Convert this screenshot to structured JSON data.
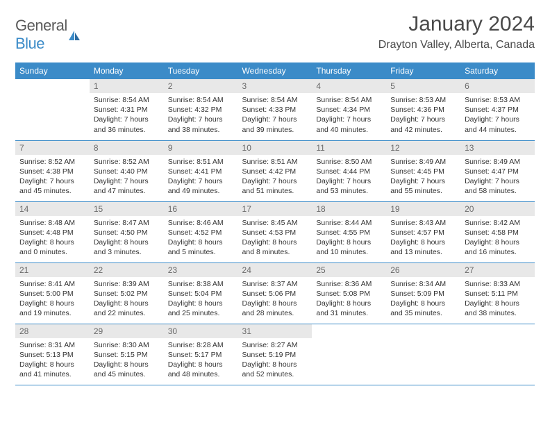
{
  "brand": {
    "name_gray": "General",
    "name_blue": "Blue"
  },
  "title": "January 2024",
  "location": "Drayton Valley, Alberta, Canada",
  "colors": {
    "header_bg": "#3b8bc8",
    "header_text": "#ffffff",
    "daynum_bg": "#e8e8e8",
    "daynum_text": "#6a6a6a",
    "body_text": "#333333",
    "row_border": "#3b8bc8",
    "background": "#ffffff"
  },
  "days_of_week": [
    "Sunday",
    "Monday",
    "Tuesday",
    "Wednesday",
    "Thursday",
    "Friday",
    "Saturday"
  ],
  "weeks": [
    [
      {
        "n": "",
        "sunrise": "",
        "sunset": "",
        "daylight": ""
      },
      {
        "n": "1",
        "sunrise": "8:54 AM",
        "sunset": "4:31 PM",
        "daylight": "7 hours and 36 minutes."
      },
      {
        "n": "2",
        "sunrise": "8:54 AM",
        "sunset": "4:32 PM",
        "daylight": "7 hours and 38 minutes."
      },
      {
        "n": "3",
        "sunrise": "8:54 AM",
        "sunset": "4:33 PM",
        "daylight": "7 hours and 39 minutes."
      },
      {
        "n": "4",
        "sunrise": "8:54 AM",
        "sunset": "4:34 PM",
        "daylight": "7 hours and 40 minutes."
      },
      {
        "n": "5",
        "sunrise": "8:53 AM",
        "sunset": "4:36 PM",
        "daylight": "7 hours and 42 minutes."
      },
      {
        "n": "6",
        "sunrise": "8:53 AM",
        "sunset": "4:37 PM",
        "daylight": "7 hours and 44 minutes."
      }
    ],
    [
      {
        "n": "7",
        "sunrise": "8:52 AM",
        "sunset": "4:38 PM",
        "daylight": "7 hours and 45 minutes."
      },
      {
        "n": "8",
        "sunrise": "8:52 AM",
        "sunset": "4:40 PM",
        "daylight": "7 hours and 47 minutes."
      },
      {
        "n": "9",
        "sunrise": "8:51 AM",
        "sunset": "4:41 PM",
        "daylight": "7 hours and 49 minutes."
      },
      {
        "n": "10",
        "sunrise": "8:51 AM",
        "sunset": "4:42 PM",
        "daylight": "7 hours and 51 minutes."
      },
      {
        "n": "11",
        "sunrise": "8:50 AM",
        "sunset": "4:44 PM",
        "daylight": "7 hours and 53 minutes."
      },
      {
        "n": "12",
        "sunrise": "8:49 AM",
        "sunset": "4:45 PM",
        "daylight": "7 hours and 55 minutes."
      },
      {
        "n": "13",
        "sunrise": "8:49 AM",
        "sunset": "4:47 PM",
        "daylight": "7 hours and 58 minutes."
      }
    ],
    [
      {
        "n": "14",
        "sunrise": "8:48 AM",
        "sunset": "4:48 PM",
        "daylight": "8 hours and 0 minutes."
      },
      {
        "n": "15",
        "sunrise": "8:47 AM",
        "sunset": "4:50 PM",
        "daylight": "8 hours and 3 minutes."
      },
      {
        "n": "16",
        "sunrise": "8:46 AM",
        "sunset": "4:52 PM",
        "daylight": "8 hours and 5 minutes."
      },
      {
        "n": "17",
        "sunrise": "8:45 AM",
        "sunset": "4:53 PM",
        "daylight": "8 hours and 8 minutes."
      },
      {
        "n": "18",
        "sunrise": "8:44 AM",
        "sunset": "4:55 PM",
        "daylight": "8 hours and 10 minutes."
      },
      {
        "n": "19",
        "sunrise": "8:43 AM",
        "sunset": "4:57 PM",
        "daylight": "8 hours and 13 minutes."
      },
      {
        "n": "20",
        "sunrise": "8:42 AM",
        "sunset": "4:58 PM",
        "daylight": "8 hours and 16 minutes."
      }
    ],
    [
      {
        "n": "21",
        "sunrise": "8:41 AM",
        "sunset": "5:00 PM",
        "daylight": "8 hours and 19 minutes."
      },
      {
        "n": "22",
        "sunrise": "8:39 AM",
        "sunset": "5:02 PM",
        "daylight": "8 hours and 22 minutes."
      },
      {
        "n": "23",
        "sunrise": "8:38 AM",
        "sunset": "5:04 PM",
        "daylight": "8 hours and 25 minutes."
      },
      {
        "n": "24",
        "sunrise": "8:37 AM",
        "sunset": "5:06 PM",
        "daylight": "8 hours and 28 minutes."
      },
      {
        "n": "25",
        "sunrise": "8:36 AM",
        "sunset": "5:08 PM",
        "daylight": "8 hours and 31 minutes."
      },
      {
        "n": "26",
        "sunrise": "8:34 AM",
        "sunset": "5:09 PM",
        "daylight": "8 hours and 35 minutes."
      },
      {
        "n": "27",
        "sunrise": "8:33 AM",
        "sunset": "5:11 PM",
        "daylight": "8 hours and 38 minutes."
      }
    ],
    [
      {
        "n": "28",
        "sunrise": "8:31 AM",
        "sunset": "5:13 PM",
        "daylight": "8 hours and 41 minutes."
      },
      {
        "n": "29",
        "sunrise": "8:30 AM",
        "sunset": "5:15 PM",
        "daylight": "8 hours and 45 minutes."
      },
      {
        "n": "30",
        "sunrise": "8:28 AM",
        "sunset": "5:17 PM",
        "daylight": "8 hours and 48 minutes."
      },
      {
        "n": "31",
        "sunrise": "8:27 AM",
        "sunset": "5:19 PM",
        "daylight": "8 hours and 52 minutes."
      },
      {
        "n": "",
        "sunrise": "",
        "sunset": "",
        "daylight": ""
      },
      {
        "n": "",
        "sunrise": "",
        "sunset": "",
        "daylight": ""
      },
      {
        "n": "",
        "sunrise": "",
        "sunset": "",
        "daylight": ""
      }
    ]
  ],
  "labels": {
    "sunrise": "Sunrise:",
    "sunset": "Sunset:",
    "daylight": "Daylight:"
  }
}
